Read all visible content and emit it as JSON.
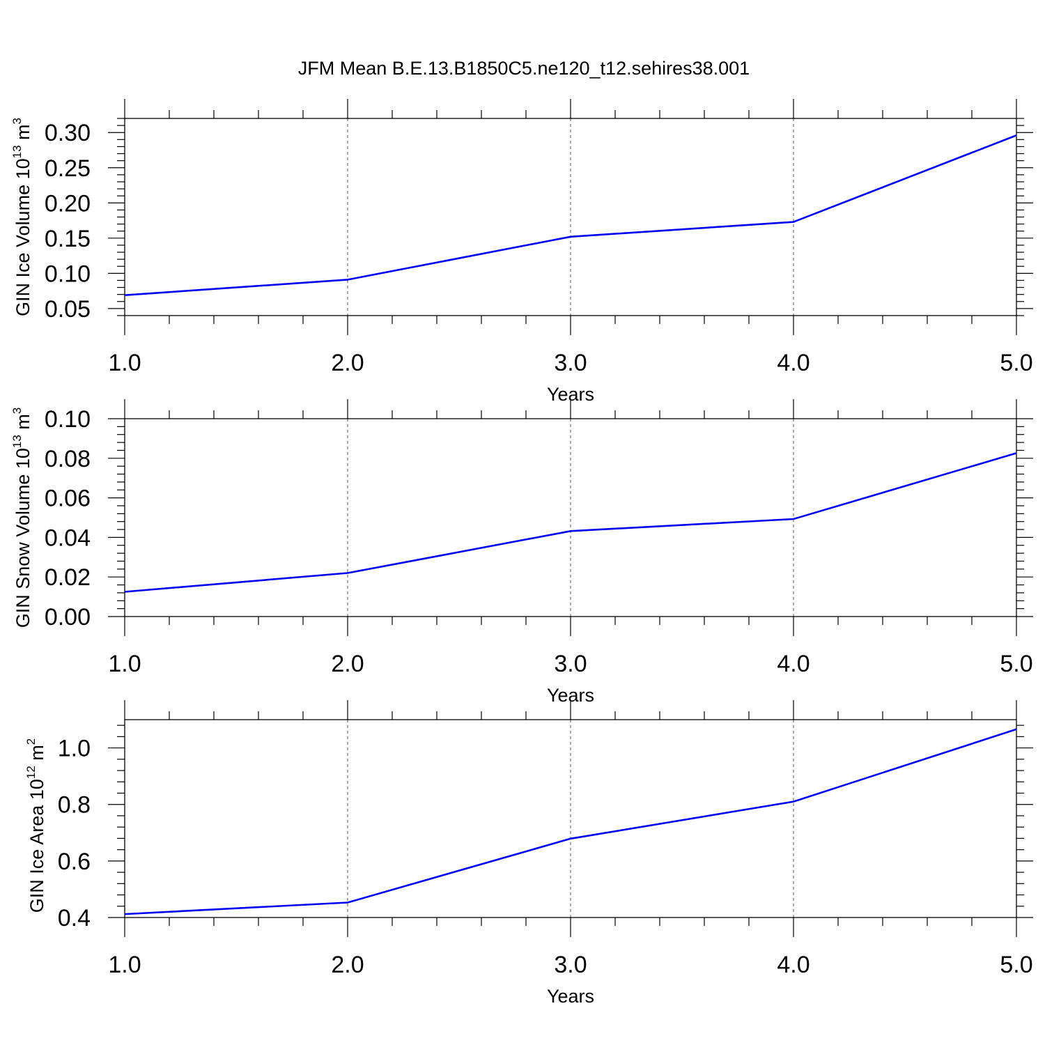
{
  "title": "JFM Mean B.E.13.B1850C5.ne120_t12.sehires38.001",
  "chart_data": [
    {
      "type": "line",
      "xlabel": "Years",
      "ylabel": {
        "text": "GIN Ice Volume 10",
        "exp": "13",
        "unit": " m",
        "unit_exp": "3"
      },
      "xlim": [
        1.0,
        5.0
      ],
      "ylim": [
        0.04,
        0.32
      ],
      "xticks": [
        "1.0",
        "2.0",
        "3.0",
        "4.0",
        "5.0"
      ],
      "yticks": [
        "0.05",
        "0.10",
        "0.15",
        "0.20",
        "0.25",
        "0.30"
      ],
      "grid": "vertical dashed at major x ticks",
      "x": [
        1,
        2,
        3,
        4,
        5
      ],
      "values": [
        0.069,
        0.091,
        0.152,
        0.173,
        0.296
      ],
      "color": "#0000ee"
    },
    {
      "type": "line",
      "xlabel": "Years",
      "ylabel": {
        "text": "GIN Snow Volume 10",
        "exp": "13",
        "unit": " m",
        "unit_exp": "3"
      },
      "xlim": [
        1.0,
        5.0
      ],
      "ylim": [
        0.0,
        0.1
      ],
      "xticks": [
        "1.0",
        "2.0",
        "3.0",
        "4.0",
        "5.0"
      ],
      "yticks": [
        "0.00",
        "0.02",
        "0.04",
        "0.06",
        "0.08",
        "0.10"
      ],
      "grid": "vertical dashed at major x ticks",
      "x": [
        1,
        2,
        3,
        4,
        5
      ],
      "values": [
        0.0125,
        0.022,
        0.0432,
        0.0493,
        0.0826
      ],
      "color": "#0000ee"
    },
    {
      "type": "line",
      "xlabel": "Years",
      "ylabel": {
        "text": "GIN Ice Area 10",
        "exp": "12",
        "unit": " m",
        "unit_exp": "2"
      },
      "xlim": [
        1.0,
        5.0
      ],
      "ylim": [
        0.4,
        1.1
      ],
      "xticks": [
        "1.0",
        "2.0",
        "3.0",
        "4.0",
        "5.0"
      ],
      "yticks": [
        "0.4",
        "0.6",
        "0.8",
        "1.0"
      ],
      "grid": "vertical dashed at major x ticks",
      "x": [
        1,
        2,
        3,
        4,
        5
      ],
      "values": [
        0.412,
        0.453,
        0.679,
        0.81,
        1.066
      ],
      "color": "#0000ee"
    }
  ]
}
